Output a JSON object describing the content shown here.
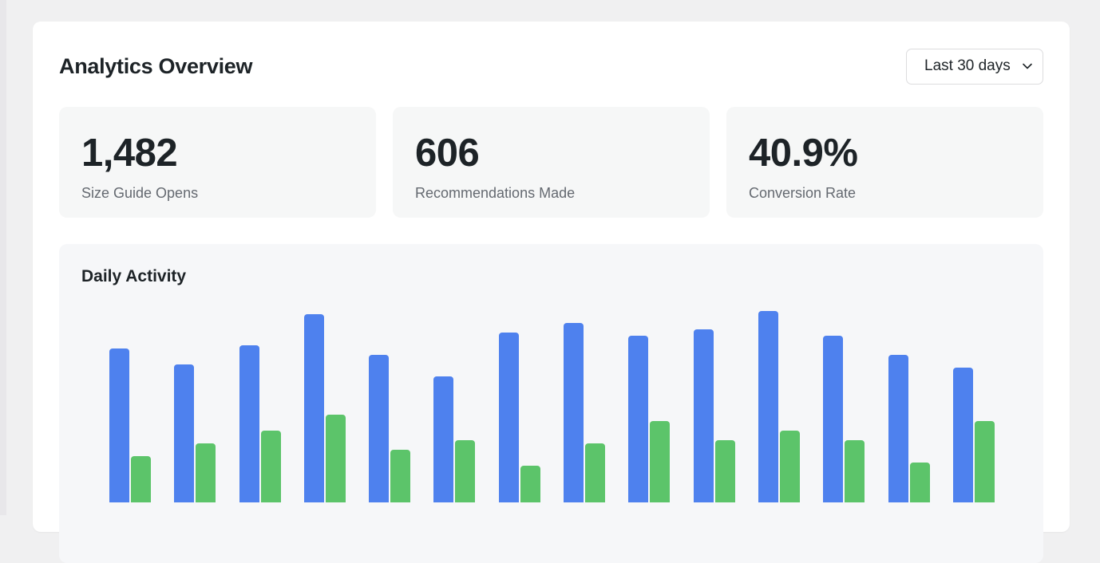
{
  "header": {
    "title": "Analytics Overview",
    "range_select": {
      "value": "Last 30 days",
      "icon": "chevron-down-icon"
    }
  },
  "stats": [
    {
      "value": "1,482",
      "label": "Size Guide Opens"
    },
    {
      "value": "606",
      "label": "Recommendations Made"
    },
    {
      "value": "40.9%",
      "label": "Conversion Rate"
    }
  ],
  "chart": {
    "title": "Daily Activity"
  },
  "colors": {
    "series_1": "#4e81ee",
    "series_2": "#5cc46a",
    "card_bg": "#f6f7f9",
    "page_bg": "#f0f0f1"
  },
  "chart_data": {
    "type": "bar",
    "title": "Daily Activity",
    "xlabel": "",
    "ylabel": "",
    "grid": false,
    "legend": null,
    "note": "Relative bar heights in px (no y-axis shown); x-axis tick labels are clipped at the image bottom and not legible",
    "categories": [
      "",
      "",
      "",
      "",
      "",
      "",
      "",
      "",
      "",
      "",
      "",
      "",
      "",
      ""
    ],
    "series": [
      {
        "name": "series_1",
        "color": "#4e81ee",
        "values": [
          193,
          173,
          197,
          236,
          185,
          158,
          213,
          225,
          209,
          217,
          240,
          209,
          185,
          169
        ]
      },
      {
        "name": "series_2",
        "color": "#5cc46a",
        "values": [
          58,
          74,
          90,
          110,
          66,
          78,
          46,
          74,
          102,
          78,
          90,
          78,
          50,
          102
        ]
      }
    ],
    "ylim": [
      0,
      264
    ]
  }
}
